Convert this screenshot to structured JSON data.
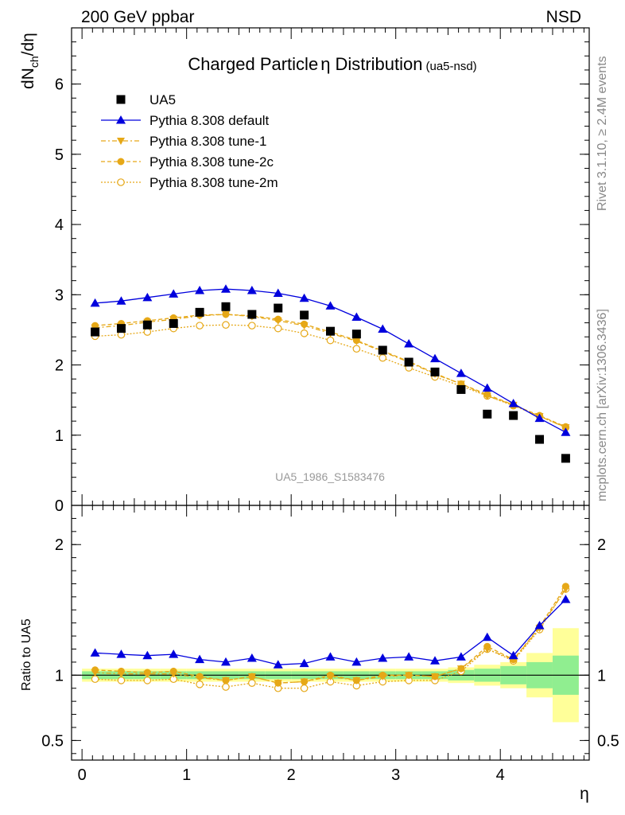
{
  "header": {
    "left": "200 GeV ppbar",
    "right": "NSD"
  },
  "title": {
    "main": "Charged Particle",
    "symbol": "η",
    "main2": "Distribution",
    "suffix": "(ua5-nsd)"
  },
  "ylabel_top": {
    "base": "dN",
    "sub": "ch",
    "tail": "/dη"
  },
  "ylabel_bottom": "Ratio to UA5",
  "xlabel": "η",
  "side_top": "Rivet 3.1.10, ≥ 2.4M events",
  "side_bottom": "mcplots.cern.ch [arXiv:1306.3436]",
  "watermark": "UA5_1986_S1583476",
  "colors": {
    "blue": "#0000dd",
    "orange": "#e6a817",
    "green": "#90ee90",
    "yellow": "#ffff99"
  },
  "chart_data": [
    {
      "type": "scatter",
      "xlim": [
        -0.1,
        4.85
      ],
      "ylim": [
        0,
        6.8
      ],
      "yticks": [
        0,
        1,
        2,
        3,
        4,
        5,
        6
      ],
      "x": [
        0.125,
        0.375,
        0.625,
        0.875,
        1.125,
        1.375,
        1.625,
        1.875,
        2.125,
        2.375,
        2.625,
        2.875,
        3.125,
        3.375,
        3.625,
        3.875,
        4.125,
        4.375,
        4.625
      ],
      "series": [
        {
          "name": "UA5",
          "marker": "square",
          "values": [
            2.47,
            2.52,
            2.57,
            2.59,
            2.75,
            2.83,
            2.72,
            2.81,
            2.71,
            2.48,
            2.44,
            2.21,
            2.04,
            1.9,
            1.65,
            1.3,
            1.28,
            0.94,
            0.67
          ]
        },
        {
          "name": "Pythia 8.308 default",
          "marker": "triangle-up",
          "values": [
            2.88,
            2.91,
            2.96,
            3.01,
            3.06,
            3.08,
            3.06,
            3.02,
            2.95,
            2.84,
            2.68,
            2.51,
            2.3,
            2.09,
            1.88,
            1.67,
            1.45,
            1.24,
            1.04
          ]
        },
        {
          "name": "Pythia 8.308 tune-1",
          "marker": "triangle-down",
          "values": [
            2.53,
            2.56,
            2.61,
            2.65,
            2.7,
            2.72,
            2.69,
            2.63,
            2.56,
            2.45,
            2.34,
            2.19,
            2.04,
            1.87,
            1.73,
            1.56,
            1.43,
            1.27,
            1.11
          ]
        },
        {
          "name": "Pythia 8.308 tune-2c",
          "marker": "circle",
          "values": [
            2.56,
            2.59,
            2.63,
            2.67,
            2.71,
            2.72,
            2.7,
            2.65,
            2.58,
            2.47,
            2.35,
            2.2,
            2.05,
            1.88,
            1.73,
            1.58,
            1.43,
            1.28,
            1.12
          ]
        },
        {
          "name": "Pythia 8.308 tune-2m",
          "marker": "circle-open",
          "values": [
            2.41,
            2.43,
            2.47,
            2.52,
            2.56,
            2.57,
            2.56,
            2.52,
            2.45,
            2.35,
            2.23,
            2.1,
            1.96,
            1.83,
            1.7,
            1.56,
            1.42,
            1.27,
            1.11
          ]
        }
      ]
    },
    {
      "type": "scatter",
      "xlim": [
        -0.1,
        4.85
      ],
      "ylim": [
        0.35,
        2.3
      ],
      "yticks": [
        0.5,
        1,
        2
      ],
      "xticks": [
        0,
        1,
        2,
        3,
        4
      ],
      "x": [
        0.125,
        0.375,
        0.625,
        0.875,
        1.125,
        1.375,
        1.625,
        1.875,
        2.125,
        2.375,
        2.625,
        2.875,
        3.125,
        3.375,
        3.625,
        3.875,
        4.125,
        4.375,
        4.625
      ],
      "reference": 1.0,
      "band_green": [
        0.03,
        0.03,
        0.03,
        0.03,
        0.03,
        0.03,
        0.03,
        0.03,
        0.03,
        0.03,
        0.03,
        0.03,
        0.03,
        0.03,
        0.04,
        0.05,
        0.07,
        0.1,
        0.15
      ],
      "band_yellow": [
        0.05,
        0.05,
        0.05,
        0.05,
        0.05,
        0.05,
        0.05,
        0.05,
        0.05,
        0.05,
        0.05,
        0.05,
        0.05,
        0.05,
        0.06,
        0.08,
        0.1,
        0.17,
        0.36
      ],
      "series": [
        {
          "name": "Pythia 8.308 default",
          "marker": "triangle-up",
          "values": [
            1.17,
            1.16,
            1.15,
            1.16,
            1.12,
            1.1,
            1.13,
            1.08,
            1.09,
            1.14,
            1.1,
            1.13,
            1.14,
            1.11,
            1.14,
            1.29,
            1.15,
            1.38,
            1.58
          ]
        },
        {
          "name": "Pythia 8.308 tune-1",
          "marker": "triangle-down",
          "values": [
            1.02,
            1.01,
            1.01,
            1.01,
            0.98,
            0.96,
            0.99,
            0.94,
            0.95,
            0.99,
            0.96,
            0.99,
            1.0,
            0.99,
            1.05,
            1.2,
            1.12,
            1.36,
            1.66
          ]
        },
        {
          "name": "Pythia 8.308 tune-2c",
          "marker": "circle",
          "values": [
            1.04,
            1.03,
            1.02,
            1.03,
            0.99,
            0.96,
            0.99,
            0.94,
            0.95,
            1.0,
            0.96,
            1.0,
            1.0,
            0.99,
            1.05,
            1.22,
            1.12,
            1.37,
            1.68
          ]
        },
        {
          "name": "Pythia 8.308 tune-2m",
          "marker": "circle-open",
          "values": [
            0.97,
            0.96,
            0.96,
            0.97,
            0.93,
            0.91,
            0.94,
            0.9,
            0.9,
            0.95,
            0.92,
            0.95,
            0.96,
            0.96,
            1.03,
            1.2,
            1.11,
            1.35,
            1.66
          ]
        }
      ]
    }
  ]
}
